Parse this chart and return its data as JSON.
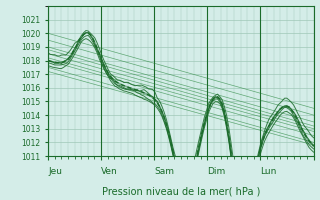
{
  "title": "Pression niveau de la mer( hPa )",
  "xlabels": [
    "Jeu",
    "Ven",
    "Sam",
    "Dim",
    "Lun"
  ],
  "ylim": [
    1011,
    1022
  ],
  "yticks": [
    1011,
    1012,
    1013,
    1014,
    1015,
    1016,
    1017,
    1018,
    1019,
    1020,
    1021
  ],
  "background_color": "#d4ede8",
  "grid_color": "#a0c8b8",
  "line_color": "#1a6b2a",
  "line_color_thin": "#2e8b44",
  "num_hours": 120,
  "ensemble_lines": [
    [
      1020.0,
      1014.5
    ],
    [
      1019.5,
      1014.0
    ],
    [
      1019.0,
      1013.5
    ],
    [
      1018.8,
      1013.2
    ],
    [
      1018.5,
      1013.0
    ],
    [
      1018.2,
      1012.8
    ],
    [
      1018.0,
      1012.5
    ],
    [
      1017.5,
      1012.0
    ],
    [
      1017.2,
      1011.8
    ]
  ]
}
